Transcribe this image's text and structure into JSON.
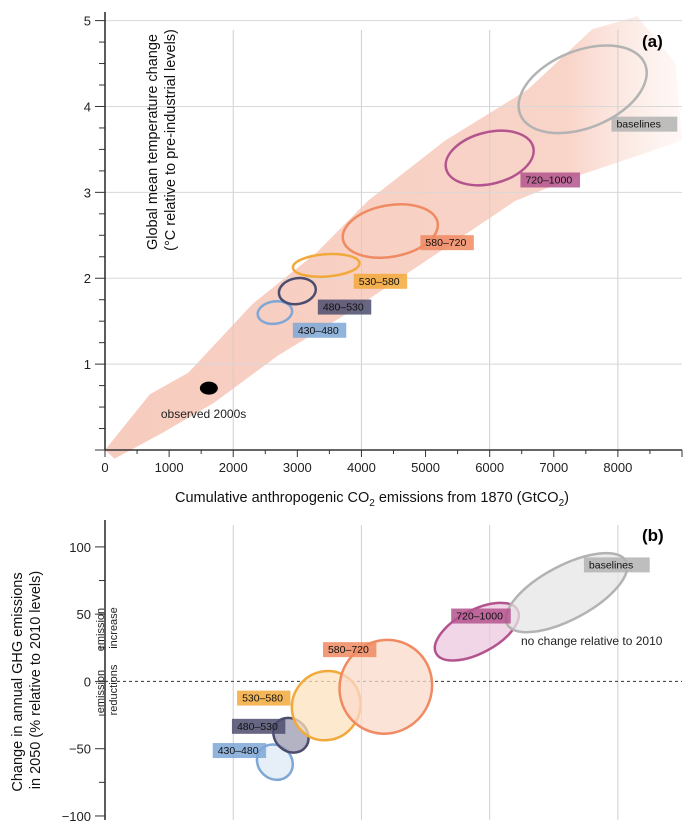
{
  "chart_data": [
    {
      "panel_label": "(a)",
      "type": "scatter",
      "xlabel_main": "Cumulative anthropogenic CO",
      "xlabel_sub": "2",
      "xlabel_tail": " emissions from 1870 (GtCO",
      "xlabel_sub2": "2",
      "xlabel_end": ")",
      "ylabel_line1": "Global mean temperature change",
      "ylabel_line2": "(°C relative to pre-industrial levels)",
      "xlim": [
        0,
        9000
      ],
      "ylim": [
        0,
        5.1
      ],
      "xticks": [
        "0",
        "1000",
        "2000",
        "3000",
        "4000",
        "5000",
        "6000",
        "7000",
        "8000"
      ],
      "yticks": [
        "1",
        "2",
        "3",
        "4",
        "5"
      ],
      "grid": true,
      "range_band": [
        [
          0,
          0
        ],
        [
          700,
          0.65
        ],
        [
          1300,
          0.9
        ],
        [
          2300,
          1.7
        ],
        [
          3300,
          2.3
        ],
        [
          4100,
          2.9
        ],
        [
          5300,
          3.6
        ],
        [
          6600,
          4.2
        ],
        [
          7600,
          4.9
        ],
        [
          8300,
          5.05
        ],
        [
          8900,
          4.5
        ],
        [
          9000,
          3.6
        ],
        [
          8600,
          3.5
        ],
        [
          7400,
          3.2
        ],
        [
          6400,
          2.9
        ],
        [
          5000,
          2.2
        ],
        [
          3800,
          1.6
        ],
        [
          2700,
          1.1
        ],
        [
          1700,
          0.55
        ],
        [
          900,
          0.2
        ],
        [
          150,
          -0.1
        ]
      ],
      "scenarios": [
        {
          "name": "430–480",
          "cx": 2650,
          "cy": 1.6,
          "rx": 270,
          "ry": 0.13,
          "color": "#7ea7d6",
          "fill": "none",
          "label_pos": [
            2930,
            1.4
          ]
        },
        {
          "name": "480–530",
          "cx": 3000,
          "cy": 1.85,
          "rx": 290,
          "ry": 0.15,
          "color": "#4c4c6e",
          "fill": "none",
          "label_pos": [
            3320,
            1.67
          ]
        },
        {
          "name": "530–580",
          "cx": 3450,
          "cy": 2.15,
          "rx": 520,
          "ry": 0.13,
          "color": "#f2a93b",
          "fill": "none",
          "label_pos": [
            3880,
            1.97
          ]
        },
        {
          "name": "580–720",
          "cx": 4450,
          "cy": 2.55,
          "rx": 750,
          "ry": 0.3,
          "color": "#ef8a62",
          "fill": "none",
          "label_pos": [
            4920,
            2.42
          ]
        },
        {
          "name": "720–1000",
          "cx": 6000,
          "cy": 3.4,
          "rx": 700,
          "ry": 0.3,
          "color": "#b4548e",
          "fill": "none",
          "label_pos": [
            6480,
            3.15
          ]
        },
        {
          "name": "baselines",
          "cx": 7450,
          "cy": 4.2,
          "rx": 1050,
          "ry": 0.45,
          "color": "#b3b3b3",
          "fill": "none",
          "label_pos": [
            7900,
            3.8
          ]
        }
      ],
      "observed": {
        "label": "observed 2000s",
        "x": 1620,
        "y": 0.72
      }
    },
    {
      "panel_label": "(b)",
      "type": "scatter",
      "ylabel_line1": "Change in annual GHG emissions",
      "ylabel_line2": "in 2050 (% relative to 2010 levels)",
      "xlim": [
        0,
        9000
      ],
      "ylim": [
        -103,
        120
      ],
      "yticks": [
        "-100",
        "-50",
        "0",
        "50",
        "100"
      ],
      "grid": true,
      "zero_line_label": "no change relative to 2010",
      "emission_increase": [
        "emission",
        "increase"
      ],
      "emission_reductions": [
        "emission",
        "reductions"
      ],
      "scenarios": [
        {
          "name": "430–480",
          "cx": 2650,
          "cy": -60,
          "rx": 260,
          "ry": 14,
          "color": "#7ea7d6",
          "fill": "#dde8f5",
          "label_pos": [
            1680,
            -51
          ]
        },
        {
          "name": "480–530",
          "cx": 2900,
          "cy": -40,
          "rx": 250,
          "ry": 14,
          "color": "#4c4c6e",
          "fill": "#9a9ab0",
          "label_pos": [
            1980,
            -33
          ]
        },
        {
          "name": "530–580",
          "cx": 3450,
          "cy": -18,
          "rx": 550,
          "ry": 25,
          "color": "#f2a93b",
          "fill": "#fce3bd",
          "label_pos": [
            2060,
            -12
          ]
        },
        {
          "name": "580–720",
          "cx": 4380,
          "cy": -4,
          "rx": 740,
          "ry": 34,
          "color": "#ef8a62",
          "fill": "#fad9c9",
          "label_pos": [
            3400,
            24
          ]
        },
        {
          "name": "720–1000",
          "cx": 5800,
          "cy": 37,
          "rx": 720,
          "ry": 16,
          "color": "#b4548e",
          "fill": "#ebc8dd",
          "label_pos": [
            5400,
            49
          ]
        },
        {
          "name": "baselines",
          "cx": 7200,
          "cy": 66,
          "rx": 1050,
          "ry": 20,
          "color": "#b3b3b3",
          "fill": "#e6e6e6",
          "label_pos": [
            7470,
            87
          ]
        }
      ]
    }
  ]
}
